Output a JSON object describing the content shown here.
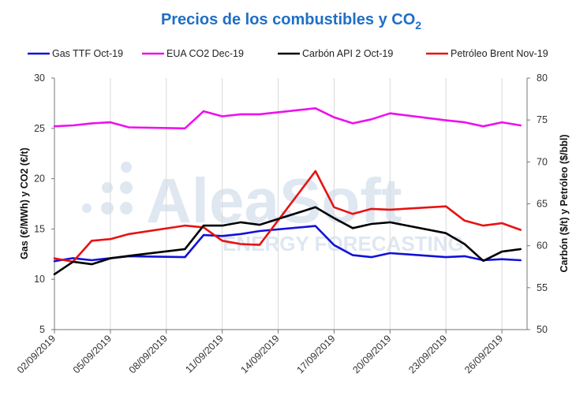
{
  "chart_data": {
    "type": "line",
    "title": "Precios de los combustibles y CO",
    "title_subscript": "2",
    "ylabel_left": "Gas (€/MWh) y CO2 (€/t)",
    "ylabel_right": "Carbón ($/t) y Petróleo ($/bbl)",
    "ylim_left": [
      5,
      30
    ],
    "ylim_right": [
      50,
      80
    ],
    "yticks_left": [
      "5",
      "10",
      "15",
      "20",
      "25",
      "30"
    ],
    "yticks_right": [
      "50",
      "55",
      "60",
      "65",
      "70",
      "75",
      "80"
    ],
    "x_ticks": [
      "02/09/2019",
      "05/09/2019",
      "08/09/2019",
      "11/09/2019",
      "14/09/2019",
      "17/09/2019",
      "20/09/2019",
      "23/09/2019",
      "26/09/2019"
    ],
    "x": [
      "02/09/2019",
      "03/09/2019",
      "04/09/2019",
      "05/09/2019",
      "06/09/2019",
      "09/09/2019",
      "10/09/2019",
      "11/09/2019",
      "12/09/2019",
      "13/09/2019",
      "16/09/2019",
      "17/09/2019",
      "18/09/2019",
      "19/09/2019",
      "20/09/2019",
      "23/09/2019",
      "24/09/2019",
      "25/09/2019",
      "26/09/2019",
      "27/09/2019"
    ],
    "series": [
      {
        "name": "Gas TTF Oct-19",
        "color": "#1212d8",
        "axis": "left",
        "values": [
          11.8,
          12.1,
          11.9,
          12.1,
          12.3,
          12.2,
          14.4,
          14.3,
          14.5,
          14.8,
          15.3,
          13.4,
          12.4,
          12.2,
          12.6,
          12.2,
          12.3,
          11.9,
          12.0,
          11.9
        ]
      },
      {
        "name": "EUA CO2 Dec-19",
        "color": "#ee10ee",
        "axis": "left",
        "values": [
          25.2,
          25.3,
          25.5,
          25.6,
          25.1,
          25.0,
          26.7,
          26.2,
          26.4,
          26.4,
          27.0,
          26.1,
          25.5,
          25.9,
          26.5,
          25.8,
          25.6,
          25.2,
          25.6,
          25.3
        ]
      },
      {
        "name": "Carbón API 2 Oct-19",
        "color": "#000000",
        "axis": "right",
        "values": [
          56.6,
          58.1,
          57.8,
          58.5,
          58.8,
          59.6,
          62.4,
          62.4,
          62.8,
          62.5,
          64.6,
          63.3,
          62.1,
          62.6,
          62.8,
          61.5,
          60.2,
          58.2,
          59.3,
          59.6
        ]
      },
      {
        "name": "Petróleo Brent Nov-19",
        "color": "#e81212",
        "axis": "right",
        "values": [
          58.5,
          58.1,
          60.6,
          60.8,
          61.4,
          62.4,
          62.2,
          60.6,
          60.2,
          60.1,
          68.9,
          64.6,
          63.8,
          64.4,
          64.3,
          64.7,
          63.0,
          62.4,
          62.7,
          61.9
        ]
      }
    ],
    "legend_position": "top",
    "grid": "vertical"
  },
  "watermark": {
    "line1": "AleaSoft",
    "line2": "ENERGY FORECASTING"
  }
}
